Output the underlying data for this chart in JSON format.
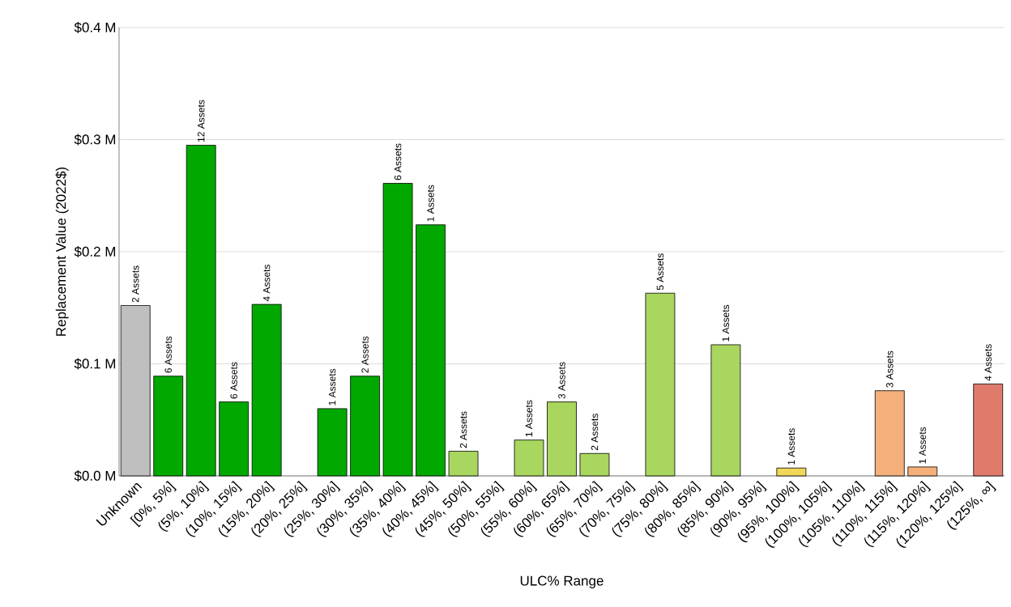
{
  "chart_data": {
    "type": "bar",
    "xlabel": "ULC% Range",
    "ylabel": "Replacement Value (2022$)",
    "categories": [
      "Unknown",
      "[0%, 5%]",
      "(5%, 10%]",
      "(10%, 15%]",
      "(15%, 20%]",
      "(20%, 25%]",
      "(25%, 30%]",
      "(30%, 35%]",
      "(35%, 40%]",
      "(40%, 45%]",
      "(45%, 50%]",
      "(50%, 55%]",
      "(55%, 60%]",
      "(60%, 65%]",
      "(65%, 70%]",
      "(70%, 75%]",
      "(75%, 80%]",
      "(80%, 85%]",
      "(85%, 90%]",
      "(90%, 95%]",
      "(95%, 100%]",
      "(100%, 105%]",
      "(105%, 110%]",
      "(110%, 115%]",
      "(115%, 120%]",
      "(120%, 125%]",
      "(125%, ∞]"
    ],
    "values": [
      0.152,
      0.089,
      0.295,
      0.066,
      0.153,
      null,
      0.06,
      0.089,
      0.261,
      0.224,
      0.022,
      null,
      0.032,
      0.066,
      0.02,
      null,
      0.163,
      null,
      0.117,
      null,
      0.007,
      null,
      null,
      0.076,
      0.008,
      null,
      0.082
    ],
    "colors": [
      "#bfbfbf",
      "#00a800",
      "#00a800",
      "#00a800",
      "#00a800",
      "#00a800",
      "#00a800",
      "#00a800",
      "#00a800",
      "#00a800",
      "#a9d65f",
      "#a9d65f",
      "#a9d65f",
      "#a9d65f",
      "#a9d65f",
      "#a9d65f",
      "#a9d65f",
      "#a9d65f",
      "#a9d65f",
      "#a9d65f",
      "#f0d75a",
      "#f0d75a",
      "#f4b07a",
      "#f4b07a",
      "#f4b07a",
      "#e07b6c",
      "#e07b6c"
    ],
    "annotations": [
      {
        "text": "2 Assets",
        "x": "Unknown",
        "y": 0.152
      },
      {
        "text": "6 Assets",
        "x": "[0%, 5%]",
        "y": 0.089
      },
      {
        "text": "12 Assets",
        "x": "(5%, 10%]",
        "y": 0.295
      },
      {
        "text": "6 Assets",
        "x": "(10%, 15%]",
        "y": 0.066
      },
      {
        "text": "4 Assets",
        "x": "(15%, 20%]",
        "y": 0.153
      },
      {
        "text": "1 Assets",
        "x": "(25%, 30%]",
        "y": 0.06
      },
      {
        "text": "2 Assets",
        "x": "(30%, 35%]",
        "y": 0.089
      },
      {
        "text": "6 Assets",
        "x": "(35%, 40%]",
        "y": 0.261
      },
      {
        "text": "1 Assets",
        "x": "(40%, 45%]",
        "y": 0.224
      },
      {
        "text": "2 Assets",
        "x": "(45%, 50%]",
        "y": 0.022
      },
      {
        "text": "1 Assets",
        "x": "(55%, 60%]",
        "y": 0.032
      },
      {
        "text": "3 Assets",
        "x": "(60%, 65%]",
        "y": 0.066
      },
      {
        "text": "2 Assets",
        "x": "(65%, 70%]",
        "y": 0.02
      },
      {
        "text": "5 Assets",
        "x": "(75%, 80%]",
        "y": 0.163
      },
      {
        "text": "1 Assets",
        "x": "(85%, 90%]",
        "y": 0.117
      },
      {
        "text": "1 Assets",
        "x": "(95%, 100%]",
        "y": 0.007
      },
      {
        "text": "3 Assets",
        "x": "(110%, 115%]",
        "y": 0.076
      },
      {
        "text": "1 Assets",
        "x": "(115%, 120%]",
        "y": 0.008
      },
      {
        "text": "4 Assets",
        "x": "(125%, ∞]",
        "y": 0.082
      }
    ],
    "ylim": [
      0,
      0.4
    ],
    "yticks": [
      {
        "value": 0,
        "label": "$0.0 M"
      },
      {
        "value": 0.1,
        "label": "$0.1 M"
      },
      {
        "value": 0.2,
        "label": "$0.2 M"
      },
      {
        "value": 0.3,
        "label": "$0.3 M"
      },
      {
        "value": 0.4,
        "label": "$0.4 M"
      }
    ],
    "grid": "y"
  }
}
